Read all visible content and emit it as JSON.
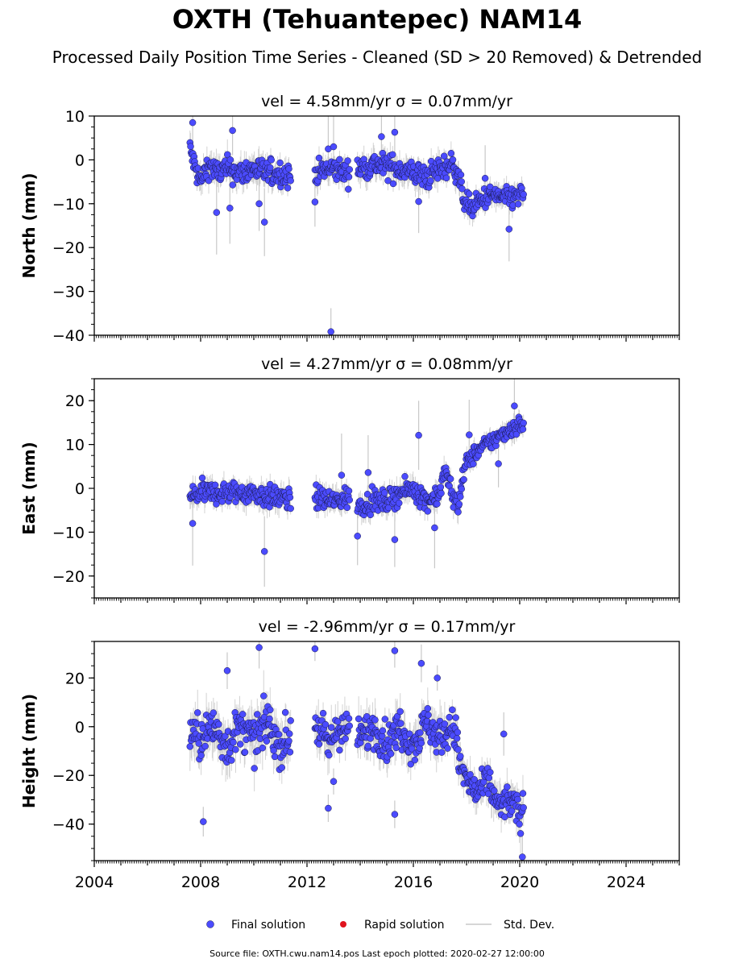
{
  "figure": {
    "title": "OXTH (Tehuantepec) NAM14",
    "subtitle": "Processed Daily Position Time Series - Cleaned (SD > 20 Removed) & Detrended",
    "source_note": "Source file: OXTH.cwu.nam14.pos  Last epoch plotted: 2020-02-27 12:00:00"
  },
  "legend": {
    "items": [
      {
        "label": "Final solution",
        "color": "#4b4bff",
        "kind": "dot"
      },
      {
        "label": "Rapid solution",
        "color": "#e0141e",
        "kind": "dot"
      },
      {
        "label": "Std. Dev.",
        "color": "#c8c8c8",
        "kind": "line"
      }
    ]
  },
  "colors": {
    "final": "#4b4bff",
    "marker_edge": "#1a1a4a",
    "stddev": "#c8c8c8",
    "rapid": "#e0141e"
  },
  "chart_data": [
    {
      "type": "scatter",
      "title": "vel = 4.58mm/yr   σ = 0.07mm/yr",
      "ylabel": "North (mm)",
      "xlim": [
        2004,
        2026
      ],
      "ylim": [
        -40,
        10
      ],
      "yticks": [
        10,
        0,
        -10,
        -20,
        -30,
        -40
      ],
      "xticks": [],
      "segments": [
        {
          "x": [
            2007.6,
            2011.4
          ],
          "scatter": 2.6,
          "trend": [
            [
              2007.6,
              2.5
            ],
            [
              2007.8,
              -2
            ],
            [
              2008.0,
              -5
            ],
            [
              2008.3,
              -1
            ],
            [
              2008.6,
              -3
            ],
            [
              2009.0,
              -2
            ],
            [
              2009.5,
              -3
            ],
            [
              2010.0,
              -2
            ],
            [
              2010.5,
              -3
            ],
            [
              2011.0,
              -3
            ],
            [
              2011.4,
              -4
            ]
          ]
        },
        {
          "x": [
            2012.3,
            2013.6
          ],
          "scatter": 2.4,
          "trend": [
            [
              2012.3,
              -3
            ],
            [
              2013.0,
              -2
            ],
            [
              2013.6,
              -3
            ]
          ]
        },
        {
          "x": [
            2013.9,
            2017.7
          ],
          "scatter": 2.6,
          "trend": [
            [
              2013.9,
              -2
            ],
            [
              2014.5,
              -1
            ],
            [
              2015.0,
              -1.5
            ],
            [
              2015.5,
              -2
            ],
            [
              2016.0,
              -3
            ],
            [
              2016.5,
              -4
            ],
            [
              2017.0,
              -2
            ],
            [
              2017.5,
              -1
            ],
            [
              2017.7,
              -3
            ]
          ]
        },
        {
          "x": [
            2017.7,
            2020.16
          ],
          "scatter": 2.2,
          "trend": [
            [
              2017.7,
              -4
            ],
            [
              2017.9,
              -9
            ],
            [
              2018.2,
              -11
            ],
            [
              2018.6,
              -9
            ],
            [
              2019.0,
              -8
            ],
            [
              2019.5,
              -9
            ],
            [
              2020.16,
              -8
            ]
          ]
        }
      ],
      "outliers": [
        {
          "x": 2007.7,
          "y": 8.5
        },
        {
          "x": 2008.6,
          "y": -12
        },
        {
          "x": 2009.2,
          "y": 6.7
        },
        {
          "x": 2009.1,
          "y": -11
        },
        {
          "x": 2010.2,
          "y": -10
        },
        {
          "x": 2010.4,
          "y": -14.2
        },
        {
          "x": 2012.9,
          "y": -39.2
        },
        {
          "x": 2012.3,
          "y": -9.6
        },
        {
          "x": 2012.8,
          "y": 2.5
        },
        {
          "x": 2013.0,
          "y": 3
        },
        {
          "x": 2014.8,
          "y": 5.3
        },
        {
          "x": 2015.3,
          "y": 6.3
        },
        {
          "x": 2016.2,
          "y": -9.5
        },
        {
          "x": 2018.7,
          "y": -4.2
        },
        {
          "x": 2019.6,
          "y": -15.8
        }
      ]
    },
    {
      "type": "scatter",
      "title": "vel = 4.27mm/yr   σ = 0.08mm/yr",
      "ylabel": "East (mm)",
      "xlim": [
        2004,
        2026
      ],
      "ylim": [
        -25,
        25
      ],
      "yticks": [
        20,
        10,
        0,
        -10,
        -20
      ],
      "xticks": [],
      "segments": [
        {
          "x": [
            2007.6,
            2011.4
          ],
          "scatter": 2.3,
          "trend": [
            [
              2007.6,
              -2
            ],
            [
              2008.0,
              -1
            ],
            [
              2008.5,
              -1
            ],
            [
              2009.0,
              -1
            ],
            [
              2009.5,
              -1
            ],
            [
              2010.0,
              -1
            ],
            [
              2010.5,
              -2
            ],
            [
              2011.0,
              -2
            ],
            [
              2011.4,
              -3
            ]
          ]
        },
        {
          "x": [
            2012.3,
            2013.6
          ],
          "scatter": 2.3,
          "trend": [
            [
              2012.3,
              -2
            ],
            [
              2013.0,
              -3
            ],
            [
              2013.6,
              -2
            ]
          ]
        },
        {
          "x": [
            2013.9,
            2017.7
          ],
          "scatter": 2.2,
          "trend": [
            [
              2013.9,
              -4
            ],
            [
              2014.5,
              -3
            ],
            [
              2015.0,
              -3
            ],
            [
              2015.5,
              -1
            ],
            [
              2016.0,
              0
            ],
            [
              2016.5,
              -3
            ],
            [
              2017.0,
              -1
            ],
            [
              2017.2,
              4
            ],
            [
              2017.5,
              -2
            ],
            [
              2017.7,
              -4
            ]
          ]
        },
        {
          "x": [
            2017.7,
            2020.16
          ],
          "scatter": 1.8,
          "trend": [
            [
              2017.7,
              -3
            ],
            [
              2017.85,
              2
            ],
            [
              2018.0,
              6
            ],
            [
              2018.5,
              9
            ],
            [
              2019.0,
              11
            ],
            [
              2019.5,
              13
            ],
            [
              2020.16,
              15
            ]
          ]
        }
      ],
      "outliers": [
        {
          "x": 2007.7,
          "y": -8
        },
        {
          "x": 2010.4,
          "y": -14.4
        },
        {
          "x": 2013.3,
          "y": 3
        },
        {
          "x": 2013.9,
          "y": -10.9
        },
        {
          "x": 2015.3,
          "y": -11.7
        },
        {
          "x": 2016.2,
          "y": 12.1
        },
        {
          "x": 2014.3,
          "y": 3.6
        },
        {
          "x": 2018.1,
          "y": 12.2
        },
        {
          "x": 2019.2,
          "y": 5.6
        },
        {
          "x": 2019.8,
          "y": 18.8
        },
        {
          "x": 2016.8,
          "y": -9
        }
      ]
    },
    {
      "type": "scatter",
      "title": "vel = -2.96mm/yr   σ = 0.17mm/yr",
      "ylabel": "Height (mm)",
      "xlim": [
        2004,
        2026
      ],
      "ylim": [
        -55,
        35
      ],
      "yticks": [
        20,
        0,
        -20,
        -40
      ],
      "xticks": [
        2004,
        2008,
        2012,
        2016,
        2020,
        2024
      ],
      "segments": [
        {
          "x": [
            2007.6,
            2011.4
          ],
          "scatter": 8,
          "trend": [
            [
              2007.6,
              -2
            ],
            [
              2008.0,
              -5
            ],
            [
              2008.5,
              0
            ],
            [
              2009.0,
              -8
            ],
            [
              2009.5,
              0
            ],
            [
              2010.0,
              -6
            ],
            [
              2010.5,
              2
            ],
            [
              2011.0,
              -8
            ],
            [
              2011.4,
              -4
            ]
          ]
        },
        {
          "x": [
            2012.3,
            2013.6
          ],
          "scatter": 7,
          "trend": [
            [
              2012.3,
              2
            ],
            [
              2012.8,
              -8
            ],
            [
              2013.2,
              0
            ],
            [
              2013.6,
              -2
            ]
          ]
        },
        {
          "x": [
            2013.9,
            2017.7
          ],
          "scatter": 7,
          "trend": [
            [
              2013.9,
              -5
            ],
            [
              2014.5,
              0
            ],
            [
              2015.0,
              -7
            ],
            [
              2015.5,
              0
            ],
            [
              2016.0,
              -8
            ],
            [
              2016.5,
              2
            ],
            [
              2017.0,
              -5
            ],
            [
              2017.5,
              0
            ],
            [
              2017.7,
              -8
            ]
          ]
        },
        {
          "x": [
            2017.7,
            2020.16
          ],
          "scatter": 6,
          "trend": [
            [
              2017.7,
              -15
            ],
            [
              2018.0,
              -22
            ],
            [
              2018.4,
              -28
            ],
            [
              2018.8,
              -22
            ],
            [
              2019.2,
              -33
            ],
            [
              2019.6,
              -30
            ],
            [
              2020.0,
              -36
            ],
            [
              2020.16,
              -33
            ]
          ]
        }
      ],
      "outliers": [
        {
          "x": 2010.2,
          "y": 32.5
        },
        {
          "x": 2012.3,
          "y": 32
        },
        {
          "x": 2015.3,
          "y": 31.2
        },
        {
          "x": 2016.3,
          "y": 26
        },
        {
          "x": 2008.1,
          "y": -39
        },
        {
          "x": 2012.8,
          "y": -33.5
        },
        {
          "x": 2013.0,
          "y": -22.5
        },
        {
          "x": 2015.3,
          "y": -36
        },
        {
          "x": 2009.0,
          "y": 23
        },
        {
          "x": 2016.9,
          "y": 20
        },
        {
          "x": 2020.1,
          "y": -53.5
        },
        {
          "x": 2019.4,
          "y": -3
        }
      ]
    }
  ]
}
